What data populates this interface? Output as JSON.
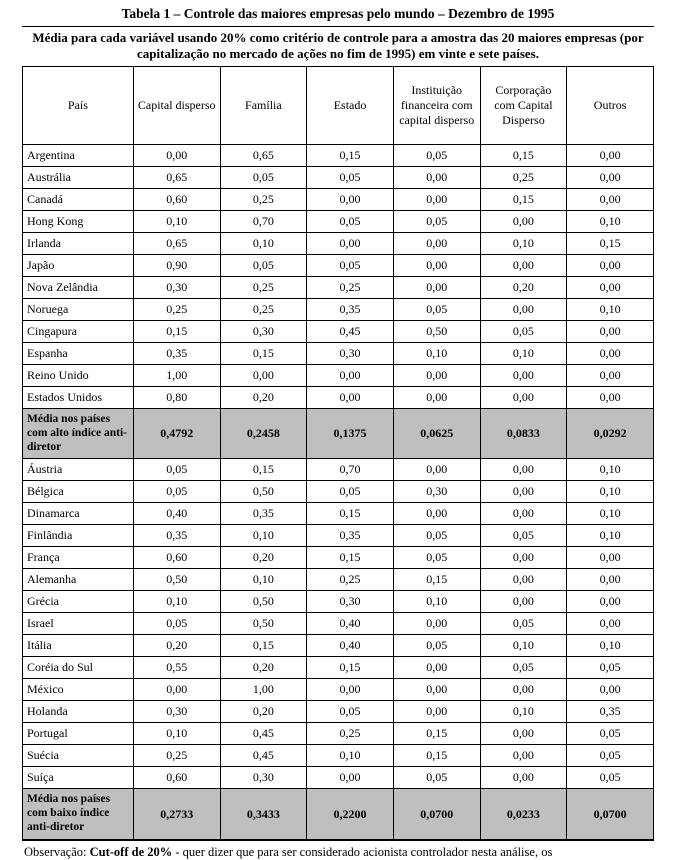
{
  "title": "Tabela 1 – Controle das maiores empresas pelo mundo – Dezembro de 1995",
  "subtitle": "Média para cada variável usando 20% como critério de controle para a amostra das 20 maiores empresas (por capitalização no mercado de ações no fim de 1995) em vinte e sete países.",
  "columns": [
    "País",
    "Capital disperso",
    "Família",
    "Estado",
    "Instituição financeira com capital disperso",
    "Corporação com Capital Disperso",
    "Outros"
  ],
  "groupA": [
    {
      "c": "Argentina",
      "v": [
        "0,00",
        "0,65",
        "0,15",
        "0,05",
        "0,15",
        "0,00"
      ]
    },
    {
      "c": "Austrália",
      "v": [
        "0,65",
        "0,05",
        "0,05",
        "0,00",
        "0,25",
        "0,00"
      ]
    },
    {
      "c": "Canadá",
      "v": [
        "0,60",
        "0,25",
        "0,00",
        "0,00",
        "0,15",
        "0,00"
      ]
    },
    {
      "c": "Hong Kong",
      "v": [
        "0,10",
        "0,70",
        "0,05",
        "0,05",
        "0,00",
        "0,10"
      ]
    },
    {
      "c": "Irlanda",
      "v": [
        "0,65",
        "0,10",
        "0,00",
        "0,00",
        "0,10",
        "0,15"
      ]
    },
    {
      "c": "Japão",
      "v": [
        "0,90",
        "0,05",
        "0,05",
        "0,00",
        "0,00",
        "0,00"
      ]
    },
    {
      "c": "Nova Zelândia",
      "v": [
        "0,30",
        "0,25",
        "0,25",
        "0,00",
        "0,20",
        "0,00"
      ]
    },
    {
      "c": "Noruega",
      "v": [
        "0,25",
        "0,25",
        "0,35",
        "0,05",
        "0,00",
        "0,10"
      ]
    },
    {
      "c": "Cingapura",
      "v": [
        "0,15",
        "0,30",
        "0,45",
        "0,50",
        "0,05",
        "0,00"
      ]
    },
    {
      "c": "Espanha",
      "v": [
        "0,35",
        "0,15",
        "0,30",
        "0,10",
        "0,10",
        "0,00"
      ]
    },
    {
      "c": "Reino Unido",
      "v": [
        "1,00",
        "0,00",
        "0,00",
        "0,00",
        "0,00",
        "0,00"
      ]
    },
    {
      "c": "Estados Unidos",
      "v": [
        "0,80",
        "0,20",
        "0,00",
        "0,00",
        "0,00",
        "0,00"
      ]
    }
  ],
  "summaryA": {
    "label": "Média nos países com alto índice anti-diretor",
    "v": [
      "0,4792",
      "0,2458",
      "0,1375",
      "0,0625",
      "0,0833",
      "0,0292"
    ]
  },
  "groupB": [
    {
      "c": "Áustria",
      "v": [
        "0,05",
        "0,15",
        "0,70",
        "0,00",
        "0,00",
        "0,10"
      ]
    },
    {
      "c": "Bélgica",
      "v": [
        "0,05",
        "0,50",
        "0,05",
        "0,30",
        "0,00",
        "0,10"
      ]
    },
    {
      "c": "Dinamarca",
      "v": [
        "0,40",
        "0,35",
        "0,15",
        "0,00",
        "0,00",
        "0,10"
      ]
    },
    {
      "c": "Finlândia",
      "v": [
        "0,35",
        "0,10",
        "0,35",
        "0,05",
        "0,05",
        "0,10"
      ]
    },
    {
      "c": "França",
      "v": [
        "0,60",
        "0,20",
        "0,15",
        "0,05",
        "0,00",
        "0,00"
      ]
    },
    {
      "c": "Alemanha",
      "v": [
        "0,50",
        "0,10",
        "0,25",
        "0,15",
        "0,00",
        "0,00"
      ]
    },
    {
      "c": "Grécia",
      "v": [
        "0,10",
        "0,50",
        "0,30",
        "0,10",
        "0,00",
        "0,00"
      ]
    },
    {
      "c": "Israel",
      "v": [
        "0,05",
        "0,50",
        "0,40",
        "0,00",
        "0,05",
        "0,00"
      ]
    },
    {
      "c": "Itália",
      "v": [
        "0,20",
        "0,15",
        "0,40",
        "0,05",
        "0,10",
        "0,10"
      ]
    },
    {
      "c": "Coréia do Sul",
      "v": [
        "0,55",
        "0,20",
        "0,15",
        "0,00",
        "0,05",
        "0,05"
      ]
    },
    {
      "c": "México",
      "v": [
        "0,00",
        "1,00",
        "0,00",
        "0,00",
        "0,00",
        "0,00"
      ]
    },
    {
      "c": "Holanda",
      "v": [
        "0,30",
        "0,20",
        "0,05",
        "0,00",
        "0,10",
        "0,35"
      ]
    },
    {
      "c": "Portugal",
      "v": [
        "0,10",
        "0,45",
        "0,25",
        "0,15",
        "0,00",
        "0,05"
      ]
    },
    {
      "c": "Suécia",
      "v": [
        "0,25",
        "0,45",
        "0,10",
        "0,15",
        "0,00",
        "0,05"
      ]
    },
    {
      "c": "Suíça",
      "v": [
        "0,60",
        "0,30",
        "0,00",
        "0,05",
        "0,00",
        "0,05"
      ]
    }
  ],
  "summaryB": {
    "label": "Média nos países com baixo índice anti-diretor",
    "v": [
      "0,2733",
      "0,3433",
      "0,2200",
      "0,0700",
      "0,0233",
      "0,0700"
    ]
  },
  "obs_prefix": "Observação: ",
  "obs_bold": "Cut-off de 20%",
  "obs_rest": " - quer dizer que para ser considerado acionista controlador nesta análise, os"
}
